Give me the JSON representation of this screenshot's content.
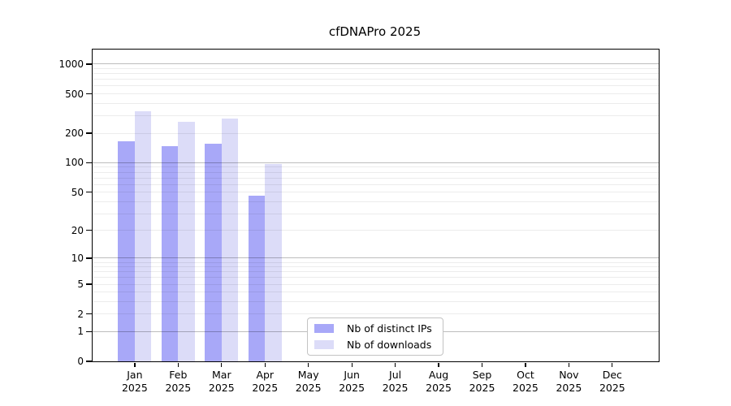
{
  "title": "cfDNAPro 2025",
  "legend": {
    "items": [
      {
        "label": "Nb of distinct IPs",
        "color": "#a8a8f8"
      },
      {
        "label": "Nb of downloads",
        "color": "#dcdcf8"
      }
    ]
  },
  "chart_data": {
    "type": "bar",
    "title": "cfDNAPro 2025",
    "categories": [
      "Jan 2025",
      "Feb 2025",
      "Mar 2025",
      "Apr 2025",
      "May 2025",
      "Jun 2025",
      "Jul 2025",
      "Aug 2025",
      "Sep 2025",
      "Oct 2025",
      "Nov 2025",
      "Dec 2025"
    ],
    "series": [
      {
        "name": "Nb of distinct IPs",
        "color": "#a8a8f8",
        "values": [
          166,
          148,
          155,
          46,
          0,
          0,
          0,
          0,
          0,
          0,
          0,
          0
        ]
      },
      {
        "name": "Nb of downloads",
        "color": "#dcdcf8",
        "values": [
          335,
          260,
          284,
          97,
          0,
          0,
          0,
          0,
          0,
          0,
          0,
          0
        ]
      }
    ],
    "y_ticks": [
      0,
      1,
      2,
      5,
      10,
      20,
      50,
      100,
      200,
      500,
      1000
    ],
    "y_scale": "log10(1+x)",
    "ylim": [
      0,
      1400
    ],
    "xlabel": "",
    "ylabel": "",
    "grid": "horizontal",
    "legend_position": "inside-bottom-center",
    "grid_minor_per_decade": [
      2,
      3,
      4,
      5,
      6,
      7,
      8,
      9
    ],
    "grid_major": [
      1,
      10,
      100,
      1000
    ]
  }
}
